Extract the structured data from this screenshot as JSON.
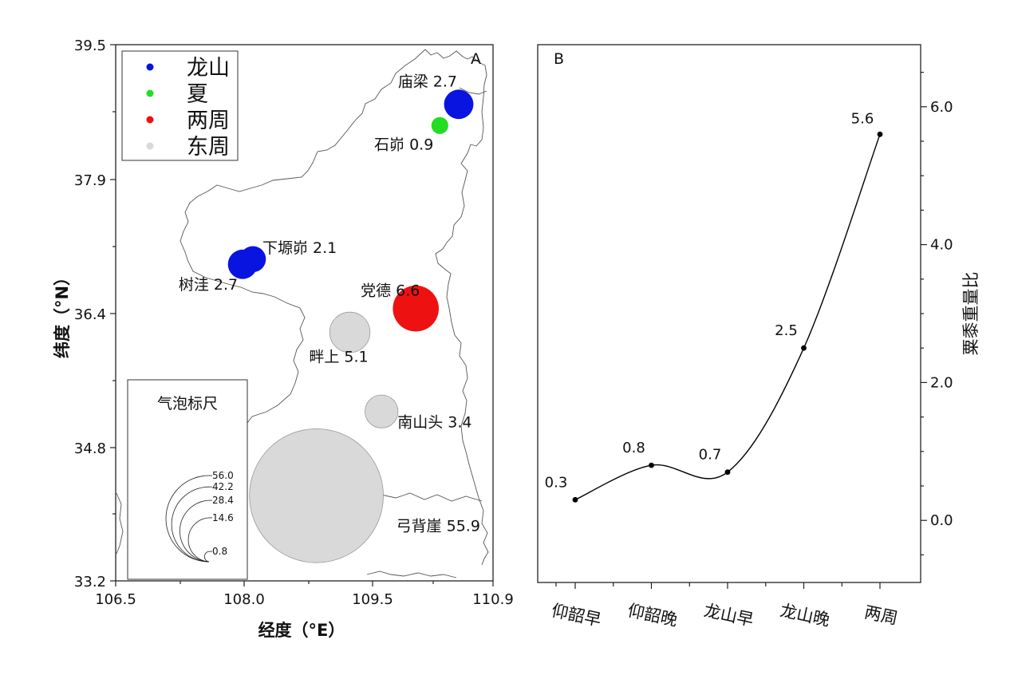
{
  "chart_data": [
    {
      "type": "scatter",
      "panel_label": "A",
      "xlabel": "经度（°E）",
      "ylabel": "纬度（°N）",
      "xlim": [
        106.5,
        110.9
      ],
      "ylim": [
        33.2,
        39.5
      ],
      "xticks": [
        "106.5",
        "108.0",
        "109.5",
        "110.9"
      ],
      "yticks": [
        "33.2",
        "34.8",
        "36.4",
        "37.9",
        "39.5"
      ],
      "legend": {
        "placement": "top-left",
        "entries": [
          {
            "label": "龙山",
            "color": "#0a14e0"
          },
          {
            "label": "夏",
            "color": "#22dd22"
          },
          {
            "label": "两周",
            "color": "#ee1111"
          },
          {
            "label": "东周",
            "color": "#d9d9d9"
          }
        ]
      },
      "points": [
        {
          "name": "庙梁",
          "value_text": "2.7",
          "lon": 110.5,
          "lat": 38.8,
          "value": 2.7,
          "period": "龙山"
        },
        {
          "name": "石峁",
          "value_text": "0.9",
          "lon": 110.28,
          "lat": 38.55,
          "value": 0.9,
          "period": "夏"
        },
        {
          "name": "下塬峁",
          "value_text": "2.1",
          "lon": 108.1,
          "lat": 36.98,
          "value": 2.1,
          "period": "龙山"
        },
        {
          "name": "树洼",
          "value_text": "2.7",
          "lon": 107.98,
          "lat": 36.92,
          "value": 2.7,
          "period": "龙山"
        },
        {
          "name": "党德",
          "value_text": "6.6",
          "lon": 110.0,
          "lat": 36.4,
          "value": 6.6,
          "period": "两周"
        },
        {
          "name": "畔上",
          "value_text": "5.1",
          "lon": 109.23,
          "lat": 36.12,
          "value": 5.1,
          "period": "东周"
        },
        {
          "name": "南山头",
          "value_text": "3.4",
          "lon": 109.6,
          "lat": 35.19,
          "value": 3.4,
          "period": "东周"
        },
        {
          "name": "弓背崖",
          "value_text": "55.9",
          "lon": 108.84,
          "lat": 34.2,
          "value": 55.9,
          "period": "东周"
        }
      ],
      "bubble_scale": {
        "title": "气泡标尺",
        "values": [
          56.0,
          42.2,
          28.4,
          14.6,
          0.8
        ],
        "labels": [
          "56.0",
          "42.2",
          "28.4",
          "14.6",
          "0.8"
        ]
      }
    },
    {
      "type": "line",
      "panel_label": "B",
      "ylabel": "粟黍重量比",
      "categories": [
        "仰韶早",
        "仰韶晚",
        "龙山早",
        "龙山晚",
        "两周"
      ],
      "values": [
        0.3,
        0.8,
        0.7,
        2.5,
        5.6
      ],
      "data_labels": [
        "0.3",
        "0.8",
        "0.7",
        "2.5",
        "5.6"
      ],
      "ylim": [
        -0.9,
        6.9
      ],
      "yticks": [
        "0.0",
        "2.0",
        "4.0",
        "6.0"
      ],
      "y_axis_position": "right",
      "grid": false
    }
  ]
}
